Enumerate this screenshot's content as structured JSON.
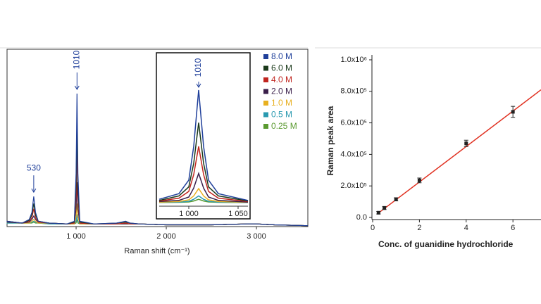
{
  "chart_data": [
    {
      "type": "line",
      "x_label": "Raman shift (cm⁻¹)",
      "x": [
        230,
        400,
        480,
        510,
        530,
        550,
        580,
        700,
        900,
        980,
        1000,
        1010,
        1020,
        1040,
        1200,
        1450,
        1550,
        1600,
        1700,
        2000,
        2500,
        2900,
        3000,
        3200,
        3570
      ],
      "xlim": [
        234,
        3570
      ],
      "xticks": [
        {
          "value": 1000,
          "label": "1 000"
        },
        {
          "value": 2000,
          "label": "2 000"
        },
        {
          "value": 3000,
          "label": "3 000"
        }
      ],
      "ylim": [
        0,
        100
      ],
      "annotations": [
        {
          "text": "530",
          "x": 530,
          "y": 17
        },
        {
          "text": "1010",
          "x": 1010,
          "y": 75
        }
      ],
      "series": [
        {
          "name": "8.0 M",
          "color": "#1f3f9a",
          "values": [
            3,
            2,
            4,
            8,
            17,
            8,
            3,
            2,
            1.5,
            3,
            30,
            75,
            30,
            3,
            1.5,
            2,
            3,
            2,
            1.5,
            1,
            1,
            1.5,
            1.5,
            1,
            0.5
          ]
        },
        {
          "name": "6.0 M",
          "color": "#1b3a1b",
          "values": [
            3,
            2,
            3.5,
            6.5,
            13,
            6.5,
            3,
            2,
            1.5,
            2.5,
            23,
            57,
            23,
            2.5,
            1.5,
            2,
            2.5,
            2,
            1.5,
            1,
            1,
            1.5,
            1.5,
            1,
            0.5
          ]
        },
        {
          "name": "4.0 M",
          "color": "#c0251f",
          "values": [
            3,
            2,
            3,
            5,
            10,
            5,
            2.5,
            2,
            1.5,
            2,
            17,
            42,
            17,
            2,
            1.5,
            1.5,
            2,
            1.5,
            1.5,
            1,
            1,
            1.5,
            1.5,
            1,
            0.5
          ]
        },
        {
          "name": "2.0 M",
          "color": "#3a1f4a",
          "values": [
            2.5,
            2,
            2.5,
            4,
            6,
            4,
            2.5,
            2,
            1.5,
            2,
            10,
            25,
            10,
            2,
            1.5,
            1.5,
            1.5,
            1.5,
            1.5,
            1,
            1,
            1.5,
            1.5,
            1,
            0.5
          ]
        },
        {
          "name": "1.0 M",
          "color": "#e8b020",
          "values": [
            2.5,
            2,
            2,
            3,
            4,
            3,
            2,
            2,
            1.5,
            1.5,
            5.5,
            13,
            5.5,
            1.5,
            1.5,
            1.5,
            1.5,
            1.5,
            1.5,
            1,
            1,
            1.5,
            1.5,
            1,
            0.5
          ]
        },
        {
          "name": "0.5 M",
          "color": "#2a9ab0",
          "values": [
            2,
            2,
            2,
            2.5,
            3,
            2.5,
            2,
            1.5,
            1.5,
            1.5,
            3,
            7,
            3,
            1.5,
            1.5,
            1.5,
            1.5,
            1.5,
            1.5,
            1,
            1,
            1.5,
            1.5,
            1,
            0.5
          ]
        },
        {
          "name": "0.25 M",
          "color": "#5a9a30",
          "values": [
            2,
            2,
            2,
            2,
            2.5,
            2,
            2,
            1.5,
            1.5,
            1.5,
            2,
            4,
            2,
            1.5,
            1.5,
            1.5,
            1.5,
            1.5,
            1.5,
            1,
            1,
            1.5,
            1.5,
            1,
            0.5
          ]
        }
      ],
      "inset": {
        "x": [
          970,
          990,
          1000,
          1005,
          1010,
          1015,
          1020,
          1030,
          1060
        ],
        "xlim": [
          970,
          1060
        ],
        "xticks": [
          {
            "value": 1000,
            "label": "1 000"
          },
          {
            "value": 1050,
            "label": "1 050"
          }
        ],
        "ylim": [
          0,
          110
        ],
        "annotation": {
          "text": "1010",
          "x": 1010,
          "y": 100
        },
        "series_values": [
          [
            3,
            8,
            20,
            50,
            100,
            50,
            20,
            8,
            2
          ],
          [
            2,
            6,
            14,
            35,
            71,
            35,
            14,
            6,
            1.5
          ],
          [
            1.5,
            4,
            10,
            25,
            50,
            25,
            10,
            4,
            1
          ],
          [
            1,
            2,
            5,
            13,
            26,
            13,
            5,
            2,
            0.5
          ],
          [
            0.5,
            1,
            2.5,
            6,
            12.5,
            6,
            2.5,
            1,
            0.3
          ],
          [
            0.3,
            0.5,
            1.2,
            3,
            6,
            3,
            1.2,
            0.5,
            0.2
          ],
          [
            0.2,
            0.3,
            0.6,
            1.5,
            3,
            1.5,
            0.6,
            0.3,
            0.1
          ]
        ]
      }
    },
    {
      "type": "scatter",
      "x_label": "Conc. of guanidine hydrochloride",
      "y_label": "Raman peak area",
      "x": [
        0.25,
        0.5,
        1,
        2,
        4,
        6
      ],
      "values": [
        30000,
        60000,
        115000,
        235000,
        470000,
        670000
      ],
      "errors": [
        8000,
        10000,
        10000,
        15000,
        20000,
        35000
      ],
      "color": "#222222",
      "fit": {
        "x": [
          0.25,
          7.2
        ],
        "values": [
          28000,
          810000
        ],
        "color": "#e03020"
      },
      "xlim": [
        0,
        7.2
      ],
      "xticks": [
        0,
        2,
        4,
        6
      ],
      "ylim": [
        0,
        1000000
      ],
      "yticks": [
        {
          "value": 0,
          "label": "0.0"
        },
        {
          "value": 200000,
          "label": "2.0x10⁵"
        },
        {
          "value": 400000,
          "label": "4.0x10⁵"
        },
        {
          "value": 600000,
          "label": "6.0x10⁵"
        },
        {
          "value": 800000,
          "label": "8.0x10⁵"
        },
        {
          "value": 1000000,
          "label": "1.0x10⁶"
        }
      ]
    }
  ]
}
